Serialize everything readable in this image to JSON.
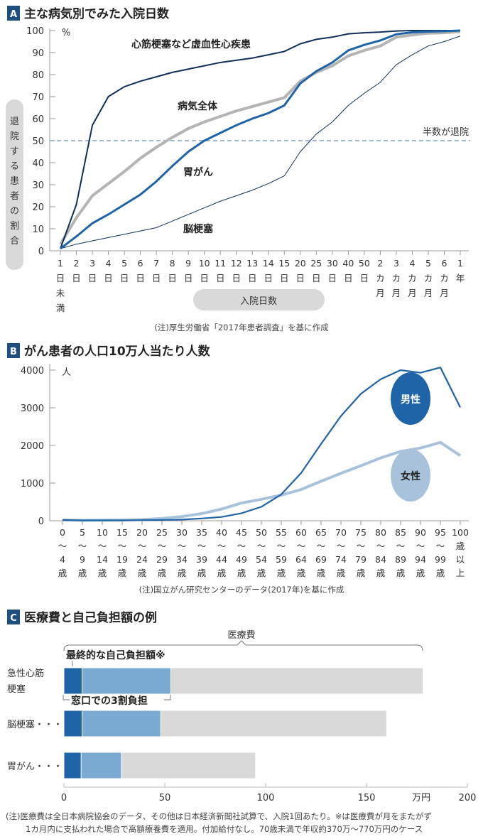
{
  "colors": {
    "navy": "#11305a",
    "blue": "#1f64a8",
    "gray_line": "#b4b4b4",
    "light_blue": "#a9c2dc",
    "mid_blue": "#7aa9d2",
    "bar_gray": "#d9d9d9",
    "badge": "#1e4f7f"
  },
  "chart_data": [
    {
      "type": "line",
      "badge": "A",
      "title": "主な病気別でみた入院日数",
      "ylabel": "退院する患者の割合",
      "xlabel": "入院日数",
      "yunit": "%",
      "ylim": [
        0,
        100
      ],
      "yticks": [
        "0",
        "10",
        "20",
        "30",
        "40",
        "50",
        "60",
        "70",
        "80",
        "90",
        "100"
      ],
      "categories": [
        [
          "1",
          "日",
          "未",
          "満"
        ],
        [
          "2",
          "日"
        ],
        [
          "3",
          "日"
        ],
        [
          "4",
          "日"
        ],
        [
          "5",
          "日"
        ],
        [
          "6",
          "日"
        ],
        [
          "7",
          "日"
        ],
        [
          "8",
          "日"
        ],
        [
          "9",
          "日"
        ],
        [
          "10",
          "日"
        ],
        [
          "11",
          "日"
        ],
        [
          "12",
          "日"
        ],
        [
          "13",
          "日"
        ],
        [
          "14",
          "日"
        ],
        [
          "15",
          "日"
        ],
        [
          "20",
          "日"
        ],
        [
          "25",
          "日"
        ],
        [
          "30",
          "日"
        ],
        [
          "40",
          "日"
        ],
        [
          "50",
          "日"
        ],
        [
          "2",
          "カ",
          "月"
        ],
        [
          "3",
          "カ",
          "月"
        ],
        [
          "4",
          "カ",
          "月"
        ],
        [
          "5",
          "カ",
          "月"
        ],
        [
          "6",
          "カ",
          "月"
        ],
        [
          "1",
          "年"
        ]
      ],
      "series": [
        {
          "name": "心筋梗塞など虚血性心疾患",
          "values": [
            1,
            21,
            57,
            70,
            74.5,
            77,
            79,
            81,
            82.5,
            84,
            85.5,
            86.5,
            87.5,
            89,
            90.5,
            94,
            96,
            97,
            98.5,
            99,
            99.3,
            99.8,
            100,
            100,
            100,
            100
          ]
        },
        {
          "name": "病気全体",
          "values": [
            3,
            15,
            25,
            30.5,
            36,
            42,
            47,
            51.5,
            55.5,
            58.5,
            61,
            63.5,
            65.5,
            67.5,
            69.5,
            77,
            81,
            84,
            88.5,
            91,
            93,
            97,
            98,
            98.8,
            99,
            99.5
          ]
        },
        {
          "name": "胃がん",
          "values": [
            1,
            6.5,
            12.5,
            16.5,
            21,
            25.5,
            31.5,
            38.5,
            45,
            50,
            53.5,
            57,
            60,
            62.5,
            66,
            76,
            81.5,
            85.5,
            91,
            93.5,
            95.5,
            98.3,
            99.2,
            99.5,
            99.7,
            100
          ]
        },
        {
          "name": "脳梗塞",
          "values": [
            1,
            3,
            4.5,
            6,
            7.5,
            9,
            10.5,
            13.5,
            16.5,
            19.5,
            22.5,
            25,
            27.5,
            30.5,
            34,
            45,
            53,
            58.5,
            66,
            71.5,
            76.5,
            84.5,
            89,
            93,
            95,
            97.5
          ]
        }
      ],
      "reference_line": {
        "value": 50,
        "label": "半数が退院"
      },
      "note": "(注)厚生労働省「2017年患者調査」を基に作成"
    },
    {
      "type": "line",
      "badge": "B",
      "title": "がん患者の人口10万人当たり人数",
      "yunit": "人",
      "ylim": [
        0,
        4000
      ],
      "yticks": [
        "0",
        "1000",
        "2000",
        "3000",
        "4000"
      ],
      "categories": [
        [
          "0",
          "〜",
          "4",
          "歳"
        ],
        [
          "5",
          "〜",
          "9",
          "歳"
        ],
        [
          "10",
          "〜",
          "14",
          "歳"
        ],
        [
          "15",
          "〜",
          "19",
          "歳"
        ],
        [
          "20",
          "〜",
          "24",
          "歳"
        ],
        [
          "25",
          "〜",
          "29",
          "歳"
        ],
        [
          "30",
          "〜",
          "34",
          "歳"
        ],
        [
          "35",
          "〜",
          "39",
          "歳"
        ],
        [
          "40",
          "〜",
          "44",
          "歳"
        ],
        [
          "45",
          "〜",
          "49",
          "歳"
        ],
        [
          "50",
          "〜",
          "54",
          "歳"
        ],
        [
          "55",
          "〜",
          "59",
          "歳"
        ],
        [
          "60",
          "〜",
          "64",
          "歳"
        ],
        [
          "65",
          "〜",
          "69",
          "歳"
        ],
        [
          "70",
          "〜",
          "74",
          "歳"
        ],
        [
          "75",
          "〜",
          "79",
          "歳"
        ],
        [
          "80",
          "〜",
          "84",
          "歳"
        ],
        [
          "85",
          "〜",
          "89",
          "歳"
        ],
        [
          "90",
          "〜",
          "94",
          "歳"
        ],
        [
          "95",
          "〜",
          "99",
          "歳"
        ],
        [
          "100",
          "歳",
          "以",
          "上"
        ]
      ],
      "series": [
        {
          "name": "男性",
          "values": [
            20,
            10,
            10,
            10,
            15,
            20,
            30,
            60,
            100,
            200,
            370,
            700,
            1270,
            2040,
            2780,
            3370,
            3760,
            4000,
            3930,
            4070,
            3010
          ]
        },
        {
          "name": "女性",
          "values": [
            20,
            10,
            15,
            20,
            30,
            60,
            110,
            190,
            310,
            470,
            570,
            680,
            830,
            1050,
            1260,
            1460,
            1670,
            1840,
            1930,
            2080,
            1730
          ]
        }
      ],
      "note": "(注)国立がん研究センターのデータ(2017年)を基に作成"
    },
    {
      "type": "bar",
      "orientation": "horizontal",
      "badge": "C",
      "title": "医療費と自己負担額の例",
      "xunit": "万円",
      "xlim": [
        0,
        200
      ],
      "xticks": [
        "0",
        "50",
        "100",
        "150",
        "200"
      ],
      "categories": [
        [
          "急性心筋",
          "梗塞"
        ],
        [
          "脳梗塞・・・・"
        ],
        [
          "胃がん・・・・"
        ]
      ],
      "series": [
        {
          "name": "最終的な自己負担額※",
          "values": [
            9,
            9,
            8.5
          ]
        },
        {
          "name": "窓口での3割負担",
          "values": [
            53,
            48,
            28.5
          ]
        },
        {
          "name": "医療費",
          "values": [
            178,
            160,
            95
          ]
        }
      ],
      "note_lines": [
        "(注)医療費は全日本病院協会のデータ、その他は日本経済新聞社試算で、入院1回あたり。※は医療費が月をまたがず",
        "1カ月内に支払われた場合で高額療養費を適用。付加給付なし。70歳未満で年収約370万〜770万円のケース"
      ]
    }
  ]
}
